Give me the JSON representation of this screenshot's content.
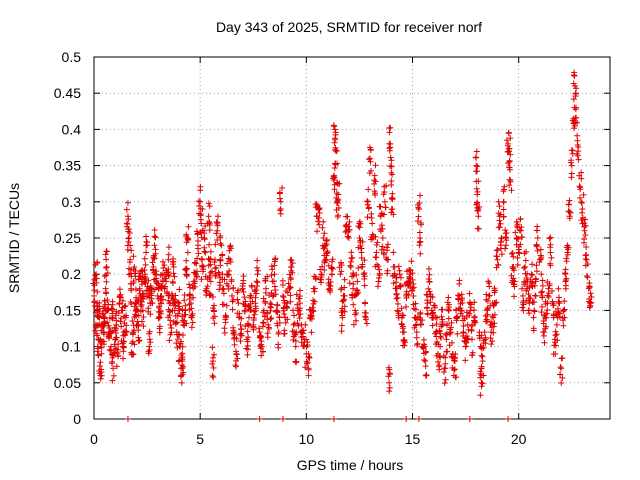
{
  "chart_data": {
    "type": "scatter",
    "title": "Day 343 of 2025, SRMTID for receiver norf",
    "xlabel": "GPS time / hours",
    "ylabel": "SRMTID / TECUs",
    "xlim": [
      0,
      24.3
    ],
    "ylim": [
      0,
      0.5
    ],
    "x_ticks": [
      0,
      5,
      10,
      15,
      20
    ],
    "x_tick_labels": [
      "0",
      "5",
      "10",
      "15",
      "20"
    ],
    "y_ticks": [
      0,
      0.05,
      0.1,
      0.15,
      0.2,
      0.25,
      0.3,
      0.35,
      0.4,
      0.45,
      0.5
    ],
    "y_tick_labels": [
      "0",
      "0.05",
      "0.1",
      "0.15",
      "0.2",
      "0.25",
      "0.3",
      "0.35",
      "0.4",
      "0.45",
      "0.5"
    ],
    "grid": true,
    "marker": "+",
    "marker_color": "#e00000",
    "series": [
      {
        "name": "SRMTID",
        "points": [
          [
            0.0,
            0.17
          ],
          [
            0.1,
            0.2
          ],
          [
            0.1,
            0.13
          ],
          [
            0.15,
            0.16
          ],
          [
            0.2,
            0.11
          ],
          [
            0.25,
            0.14
          ],
          [
            0.3,
            0.06
          ],
          [
            0.35,
            0.09
          ],
          [
            0.4,
            0.13
          ],
          [
            0.45,
            0.12
          ],
          [
            0.5,
            0.14
          ],
          [
            0.55,
            0.18
          ],
          [
            0.6,
            0.21
          ],
          [
            0.65,
            0.15
          ],
          [
            0.7,
            0.12
          ],
          [
            0.8,
            0.1
          ],
          [
            0.85,
            0.14
          ],
          [
            0.9,
            0.07
          ],
          [
            1.0,
            0.11
          ],
          [
            1.05,
            0.13
          ],
          [
            1.1,
            0.09
          ],
          [
            1.2,
            0.16
          ],
          [
            1.3,
            0.15
          ],
          [
            1.35,
            0.1
          ],
          [
            1.4,
            0.12
          ],
          [
            1.5,
            0.14
          ],
          [
            1.6,
            0.28
          ],
          [
            1.65,
            0.25
          ],
          [
            1.7,
            0.22
          ],
          [
            1.75,
            0.18
          ],
          [
            1.8,
            0.09
          ],
          [
            1.85,
            0.12
          ],
          [
            1.9,
            0.21
          ],
          [
            1.95,
            0.16
          ],
          [
            2.0,
            0.15
          ],
          [
            2.1,
            0.13
          ],
          [
            2.15,
            0.18
          ],
          [
            2.2,
            0.17
          ],
          [
            2.25,
            0.19
          ],
          [
            2.3,
            0.15
          ],
          [
            2.4,
            0.2
          ],
          [
            2.45,
            0.23
          ],
          [
            2.5,
            0.17
          ],
          [
            2.6,
            0.1
          ],
          [
            2.65,
            0.16
          ],
          [
            2.7,
            0.18
          ],
          [
            2.8,
            0.21
          ],
          [
            2.85,
            0.24
          ],
          [
            2.9,
            0.2
          ],
          [
            3.0,
            0.17
          ],
          [
            3.1,
            0.14
          ],
          [
            3.15,
            0.16
          ],
          [
            3.2,
            0.18
          ],
          [
            3.3,
            0.2
          ],
          [
            3.4,
            0.19
          ],
          [
            3.5,
            0.22
          ],
          [
            3.55,
            0.16
          ],
          [
            3.6,
            0.13
          ],
          [
            3.7,
            0.17
          ],
          [
            3.75,
            0.21
          ],
          [
            3.8,
            0.15
          ],
          [
            3.9,
            0.12
          ],
          [
            4.0,
            0.16
          ],
          [
            4.05,
            0.1
          ],
          [
            4.1,
            0.07
          ],
          [
            4.15,
            0.08
          ],
          [
            4.2,
            0.13
          ],
          [
            4.3,
            0.15
          ],
          [
            4.35,
            0.2
          ],
          [
            4.4,
            0.25
          ],
          [
            4.5,
            0.17
          ],
          [
            4.6,
            0.14
          ],
          [
            4.7,
            0.19
          ],
          [
            4.8,
            0.2
          ],
          [
            4.9,
            0.24
          ],
          [
            5.0,
            0.3
          ],
          [
            5.05,
            0.27
          ],
          [
            5.1,
            0.21
          ],
          [
            5.2,
            0.25
          ],
          [
            5.3,
            0.18
          ],
          [
            5.4,
            0.28
          ],
          [
            5.45,
            0.22
          ],
          [
            5.5,
            0.19
          ],
          [
            5.6,
            0.08
          ],
          [
            5.65,
            0.15
          ],
          [
            5.7,
            0.22
          ],
          [
            5.8,
            0.26
          ],
          [
            5.9,
            0.2
          ],
          [
            6.0,
            0.24
          ],
          [
            6.1,
            0.18
          ],
          [
            6.2,
            0.14
          ],
          [
            6.3,
            0.2
          ],
          [
            6.4,
            0.22
          ],
          [
            6.5,
            0.17
          ],
          [
            6.6,
            0.12
          ],
          [
            6.7,
            0.09
          ],
          [
            6.8,
            0.16
          ],
          [
            6.9,
            0.13
          ],
          [
            7.0,
            0.18
          ],
          [
            7.1,
            0.15
          ],
          [
            7.2,
            0.11
          ],
          [
            7.3,
            0.14
          ],
          [
            7.4,
            0.17
          ],
          [
            7.5,
            0.13
          ],
          [
            7.6,
            0.16
          ],
          [
            7.7,
            0.2
          ],
          [
            7.8,
            0.12
          ],
          [
            7.9,
            0.1
          ],
          [
            8.0,
            0.15
          ],
          [
            8.1,
            0.18
          ],
          [
            8.2,
            0.13
          ],
          [
            8.3,
            0.16
          ],
          [
            8.4,
            0.19
          ],
          [
            8.5,
            0.2
          ],
          [
            8.6,
            0.15
          ],
          [
            8.7,
            0.12
          ],
          [
            8.8,
            0.3
          ],
          [
            8.9,
            0.17
          ],
          [
            9.0,
            0.14
          ],
          [
            9.1,
            0.16
          ],
          [
            9.2,
            0.18
          ],
          [
            9.3,
            0.21
          ],
          [
            9.4,
            0.13
          ],
          [
            9.5,
            0.1
          ],
          [
            9.6,
            0.15
          ],
          [
            9.7,
            0.16
          ],
          [
            9.8,
            0.12
          ],
          [
            9.9,
            0.11
          ],
          [
            10.0,
            0.09
          ],
          [
            10.1,
            0.07
          ],
          [
            10.2,
            0.14
          ],
          [
            10.3,
            0.15
          ],
          [
            10.4,
            0.18
          ],
          [
            10.5,
            0.28
          ],
          [
            10.6,
            0.29
          ],
          [
            10.7,
            0.2
          ],
          [
            10.8,
            0.25
          ],
          [
            10.9,
            0.22
          ],
          [
            11.0,
            0.23
          ],
          [
            11.1,
            0.18
          ],
          [
            11.2,
            0.2
          ],
          [
            11.3,
            0.33
          ],
          [
            11.35,
            0.4
          ],
          [
            11.4,
            0.37
          ],
          [
            11.45,
            0.3
          ],
          [
            11.5,
            0.31
          ],
          [
            11.6,
            0.2
          ],
          [
            11.7,
            0.14
          ],
          [
            11.8,
            0.17
          ],
          [
            11.9,
            0.26
          ],
          [
            12.0,
            0.25
          ],
          [
            12.1,
            0.21
          ],
          [
            12.2,
            0.18
          ],
          [
            12.3,
            0.15
          ],
          [
            12.4,
            0.19
          ],
          [
            12.5,
            0.25
          ],
          [
            12.6,
            0.23
          ],
          [
            12.7,
            0.2
          ],
          [
            12.8,
            0.14
          ],
          [
            12.9,
            0.3
          ],
          [
            13.0,
            0.36
          ],
          [
            13.1,
            0.27
          ],
          [
            13.2,
            0.33
          ],
          [
            13.3,
            0.23
          ],
          [
            13.4,
            0.19
          ],
          [
            13.5,
            0.28
          ],
          [
            13.6,
            0.25
          ],
          [
            13.7,
            0.3
          ],
          [
            13.8,
            0.22
          ],
          [
            13.9,
            0.05
          ],
          [
            13.95,
            0.38
          ],
          [
            14.0,
            0.34
          ],
          [
            14.05,
            0.29
          ],
          [
            14.1,
            0.21
          ],
          [
            14.2,
            0.18
          ],
          [
            14.3,
            0.15
          ],
          [
            14.4,
            0.2
          ],
          [
            14.5,
            0.14
          ],
          [
            14.6,
            0.12
          ],
          [
            14.7,
            0.17
          ],
          [
            14.8,
            0.19
          ],
          [
            14.9,
            0.2
          ],
          [
            15.0,
            0.18
          ],
          [
            15.1,
            0.14
          ],
          [
            15.2,
            0.12
          ],
          [
            15.3,
            0.29
          ],
          [
            15.35,
            0.25
          ],
          [
            15.4,
            0.13
          ],
          [
            15.5,
            0.1
          ],
          [
            15.6,
            0.08
          ],
          [
            15.7,
            0.16
          ],
          [
            15.8,
            0.19
          ],
          [
            15.9,
            0.15
          ],
          [
            16.0,
            0.14
          ],
          [
            16.1,
            0.12
          ],
          [
            16.2,
            0.09
          ],
          [
            16.3,
            0.1
          ],
          [
            16.4,
            0.13
          ],
          [
            16.5,
            0.07
          ],
          [
            16.6,
            0.11
          ],
          [
            16.7,
            0.15
          ],
          [
            16.8,
            0.12
          ],
          [
            16.9,
            0.09
          ],
          [
            17.0,
            0.08
          ],
          [
            17.1,
            0.14
          ],
          [
            17.2,
            0.17
          ],
          [
            17.3,
            0.15
          ],
          [
            17.4,
            0.12
          ],
          [
            17.5,
            0.1
          ],
          [
            17.6,
            0.13
          ],
          [
            17.7,
            0.16
          ],
          [
            17.8,
            0.11
          ],
          [
            17.9,
            0.14
          ],
          [
            18.0,
            0.35
          ],
          [
            18.05,
            0.31
          ],
          [
            18.1,
            0.28
          ],
          [
            18.2,
            0.1
          ],
          [
            18.25,
            0.05
          ],
          [
            18.3,
            0.08
          ],
          [
            18.4,
            0.12
          ],
          [
            18.5,
            0.15
          ],
          [
            18.6,
            0.17
          ],
          [
            18.7,
            0.12
          ],
          [
            18.8,
            0.14
          ],
          [
            18.9,
            0.16
          ],
          [
            19.0,
            0.22
          ],
          [
            19.1,
            0.28
          ],
          [
            19.2,
            0.25
          ],
          [
            19.3,
            0.3
          ],
          [
            19.4,
            0.24
          ],
          [
            19.5,
            0.38
          ],
          [
            19.55,
            0.37
          ],
          [
            19.6,
            0.33
          ],
          [
            19.7,
            0.21
          ],
          [
            19.8,
            0.19
          ],
          [
            19.9,
            0.25
          ],
          [
            20.0,
            0.23
          ],
          [
            20.1,
            0.26
          ],
          [
            20.2,
            0.17
          ],
          [
            20.3,
            0.21
          ],
          [
            20.4,
            0.18
          ],
          [
            20.5,
            0.16
          ],
          [
            20.6,
            0.2
          ],
          [
            20.7,
            0.14
          ],
          [
            20.8,
            0.19
          ],
          [
            20.9,
            0.25
          ],
          [
            21.0,
            0.22
          ],
          [
            21.1,
            0.17
          ],
          [
            21.2,
            0.12
          ],
          [
            21.3,
            0.14
          ],
          [
            21.4,
            0.18
          ],
          [
            21.5,
            0.23
          ],
          [
            21.6,
            0.16
          ],
          [
            21.7,
            0.11
          ],
          [
            21.8,
            0.13
          ],
          [
            21.9,
            0.16
          ],
          [
            22.0,
            0.07
          ],
          [
            22.1,
            0.15
          ],
          [
            22.2,
            0.19
          ],
          [
            22.3,
            0.23
          ],
          [
            22.4,
            0.28
          ],
          [
            22.5,
            0.35
          ],
          [
            22.6,
            0.41
          ],
          [
            22.65,
            0.46
          ],
          [
            22.7,
            0.43
          ],
          [
            22.8,
            0.37
          ],
          [
            22.9,
            0.32
          ],
          [
            23.0,
            0.29
          ],
          [
            23.1,
            0.26
          ],
          [
            23.2,
            0.22
          ],
          [
            23.3,
            0.18
          ],
          [
            23.4,
            0.16
          ]
        ]
      }
    ],
    "zero_points_x": [
      1.6,
      7.8,
      8.9,
      11.3,
      14.7,
      15.3,
      17.7,
      19.5
    ]
  }
}
